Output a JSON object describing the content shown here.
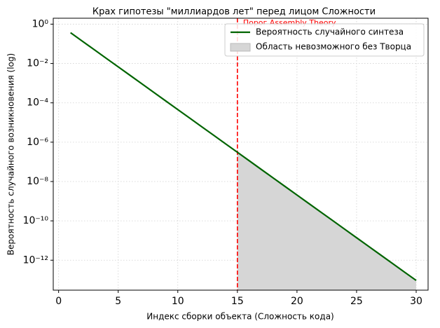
{
  "chart_data": {
    "type": "line",
    "title": "Крах гипотезы \"миллиардов лет\" перед лицом Сложности",
    "xlabel": "Индекс сборки объекта (Сложность кода)",
    "ylabel": "Вероятность случайного возникновения (log)",
    "yscale": "log",
    "grid": true,
    "legend": "upper right",
    "xlim": [
      -0.45,
      31.0
    ],
    "xticks": [
      0,
      5,
      10,
      15,
      20,
      25,
      30
    ],
    "ylim": [
      3e-14,
      2
    ],
    "yticks": [
      {
        "value": 1,
        "label": "10⁰"
      },
      {
        "value": 0.01,
        "label": "10⁻²"
      },
      {
        "value": 0.0001,
        "label": "10⁻⁴"
      },
      {
        "value": 1e-06,
        "label": "10⁻⁶"
      },
      {
        "value": 1e-08,
        "label": "10⁻⁸"
      },
      {
        "value": 1e-10,
        "label": "10⁻¹⁰"
      },
      {
        "value": 1e-12,
        "label": "10⁻¹²"
      }
    ],
    "series": [
      {
        "name": "Вероятность случайного синтеза",
        "kind": "line",
        "color": "#006400",
        "x": [
          1,
          2,
          3,
          4,
          5,
          6,
          7,
          8,
          9,
          10,
          11,
          12,
          13,
          14,
          15,
          16,
          17,
          18,
          19,
          20,
          21,
          22,
          23,
          24,
          25,
          26,
          27,
          28,
          29,
          30
        ],
        "values": [
          0.368,
          0.135,
          0.0498,
          0.0183,
          0.00674,
          0.00248,
          0.000912,
          0.000335,
          0.000123,
          4.54e-05,
          1.67e-05,
          6.14e-06,
          2.26e-06,
          8.32e-07,
          3.06e-07,
          1.13e-07,
          4.14e-08,
          1.52e-08,
          5.6e-09,
          2.06e-09,
          7.58e-10,
          2.79e-10,
          1.03e-10,
          3.78e-11,
          1.39e-11,
          5.11e-12,
          1.88e-12,
          6.91e-13,
          2.54e-13,
          9.36e-14
        ]
      },
      {
        "name": "Область невозможного без Творца",
        "kind": "area",
        "color": "#d6d6d6",
        "x": [
          15,
          16,
          17,
          18,
          19,
          20,
          21,
          22,
          23,
          24,
          25,
          26,
          27,
          28,
          29,
          30
        ],
        "values": [
          3.06e-07,
          1.13e-07,
          4.14e-08,
          1.52e-08,
          5.6e-09,
          2.06e-09,
          7.58e-10,
          2.79e-10,
          1.03e-10,
          3.78e-11,
          1.39e-11,
          5.11e-12,
          1.88e-12,
          6.91e-13,
          2.54e-13,
          9.36e-14
        ]
      }
    ],
    "vline": {
      "x": 15,
      "color": "#ff0000",
      "label": "Порог Assembly Theory"
    }
  }
}
